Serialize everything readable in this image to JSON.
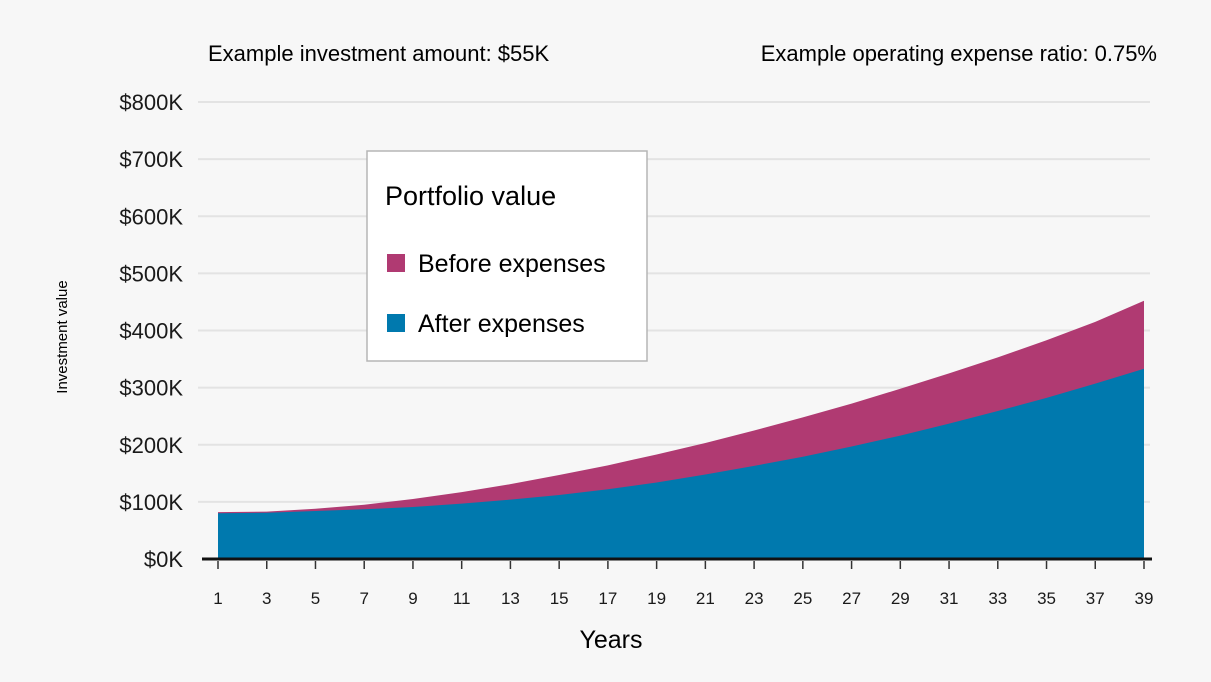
{
  "header": {
    "investment_label": "Example investment amount: $55K",
    "expense_label": "Example operating expense ratio: 0.75%"
  },
  "chart_data": {
    "type": "area",
    "xlabel": "Years",
    "ylabel": "Investment value",
    "x_ticks": [
      1,
      3,
      5,
      7,
      9,
      11,
      13,
      15,
      17,
      19,
      21,
      23,
      25,
      27,
      29,
      31,
      33,
      35,
      37,
      39
    ],
    "xlim": [
      1,
      39
    ],
    "ylim": [
      0,
      800000
    ],
    "y_ticks": [
      0,
      100000,
      200000,
      300000,
      400000,
      500000,
      600000,
      700000,
      800000
    ],
    "y_tick_labels": [
      "$0K",
      "$100K",
      "$200K",
      "$300K",
      "$400K",
      "$500K",
      "$600K",
      "$700K",
      "$800K"
    ],
    "grid": true,
    "legend": {
      "title": "Portfolio value",
      "placement": "top-left"
    },
    "x": [
      1,
      3,
      5,
      7,
      9,
      11,
      13,
      15,
      17,
      19,
      21,
      23,
      25,
      27,
      29,
      31,
      33,
      35,
      37,
      39
    ],
    "series": [
      {
        "name": "Before expenses",
        "color": "#b03a72",
        "values": [
          82000,
          83000,
          88000,
          95000,
          105000,
          117000,
          131000,
          147000,
          164000,
          183000,
          203000,
          225000,
          248000,
          272000,
          298000,
          325000,
          353000,
          383000,
          415000,
          452000
        ]
      },
      {
        "name": "After expenses",
        "color": "#0079ae",
        "values": [
          80000,
          81000,
          84000,
          87000,
          91000,
          97000,
          104000,
          112000,
          122000,
          134000,
          148000,
          163000,
          179000,
          197000,
          216000,
          237000,
          259000,
          282000,
          307000,
          333000
        ]
      }
    ]
  }
}
